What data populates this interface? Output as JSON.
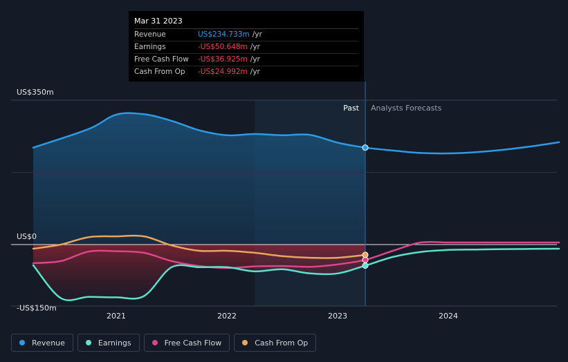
{
  "tooltip": {
    "date": "Mar 31 2023",
    "rows": [
      {
        "label": "Revenue",
        "value": "US$234.733m",
        "unit": "/yr",
        "color": "#2d9be5"
      },
      {
        "label": "Earnings",
        "value": "-US$50.648m",
        "unit": "/yr",
        "color": "#e5484d"
      },
      {
        "label": "Free Cash Flow",
        "value": "-US$36.925m",
        "unit": "/yr",
        "color": "#e5484d"
      },
      {
        "label": "Cash From Op",
        "value": "-US$24.992m",
        "unit": "/yr",
        "color": "#e5484d"
      }
    ]
  },
  "chart_data": {
    "type": "line",
    "y_ticks": [
      "US$350m",
      "US$0",
      "-US$150m"
    ],
    "x_ticks": [
      "2021",
      "2022",
      "2023",
      "2024"
    ],
    "past_label": "Past",
    "forecast_label": "Analysts Forecasts",
    "ylim": [
      -150,
      350
    ],
    "series": [
      {
        "name": "Revenue",
        "color": "#2d9be5",
        "x": [
          2020.25,
          2020.75,
          2021.0,
          2021.25,
          2021.5,
          2021.75,
          2022.0,
          2022.25,
          2022.5,
          2022.75,
          2023.0,
          2023.25,
          2023.5,
          2023.75,
          2024.0,
          2024.25,
          2024.5,
          2024.75,
          2025.0
        ],
        "y": [
          235,
          280,
          315,
          316,
          300,
          277,
          265,
          268,
          265,
          266,
          247,
          235,
          228,
          222,
          221,
          224,
          230,
          238,
          248
        ]
      },
      {
        "name": "Earnings",
        "color": "#5ee0cc",
        "x": [
          2020.25,
          2020.5,
          2020.75,
          2021.0,
          2021.25,
          2021.5,
          2021.75,
          2022.0,
          2022.25,
          2022.5,
          2022.75,
          2023.0,
          2023.25,
          2023.5,
          2023.75,
          2024.0,
          2024.25,
          2024.5,
          2025.0
        ],
        "y": [
          -50,
          -130,
          -127,
          -128,
          -125,
          -55,
          -55,
          -55,
          -65,
          -60,
          -70,
          -70,
          -51,
          -30,
          -18,
          -13,
          -12,
          -11,
          -10
        ]
      },
      {
        "name": "Free Cash Flow",
        "color": "#d9468c",
        "x": [
          2020.25,
          2020.5,
          2020.75,
          2021.0,
          2021.25,
          2021.5,
          2021.75,
          2022.0,
          2022.25,
          2022.5,
          2022.75,
          2023.0,
          2023.25,
          2023.5,
          2023.75,
          2024.0,
          2024.25,
          2024.5,
          2025.0
        ],
        "y": [
          -45,
          -40,
          -17,
          -16,
          -20,
          -40,
          -52,
          -57,
          -53,
          -52,
          -54,
          -48,
          -37,
          -15,
          5,
          5,
          5,
          5,
          5
        ]
      },
      {
        "name": "Cash From Op",
        "color": "#e8a75c",
        "x": [
          2020.25,
          2020.5,
          2020.75,
          2021.0,
          2021.25,
          2021.5,
          2021.75,
          2022.0,
          2022.25,
          2022.5,
          2022.75,
          2023.0,
          2023.25
        ],
        "y": [
          -10,
          0,
          18,
          20,
          20,
          -2,
          -15,
          -15,
          -20,
          -28,
          -32,
          -32,
          -25
        ]
      }
    ]
  },
  "legend": [
    {
      "label": "Revenue",
      "color": "#2d9be5"
    },
    {
      "label": "Earnings",
      "color": "#5ee0cc"
    },
    {
      "label": "Free Cash Flow",
      "color": "#d9468c"
    },
    {
      "label": "Cash From Op",
      "color": "#e8a75c"
    }
  ]
}
